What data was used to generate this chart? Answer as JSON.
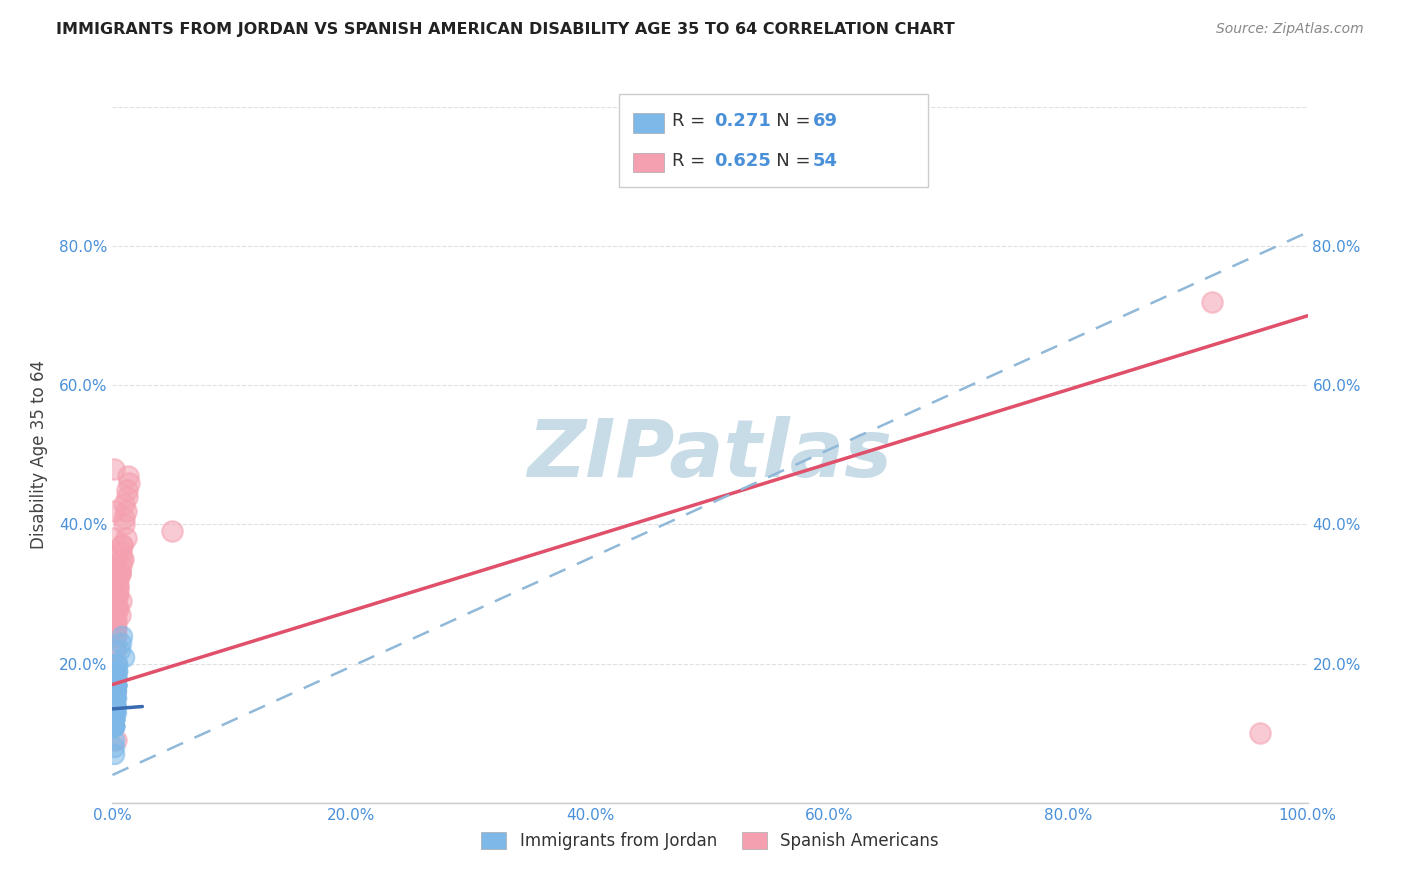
{
  "title": "IMMIGRANTS FROM JORDAN VS SPANISH AMERICAN DISABILITY AGE 35 TO 64 CORRELATION CHART",
  "source": "Source: ZipAtlas.com",
  "ylabel": "Disability Age 35 to 64",
  "xlim": [
    0.0,
    1.0
  ],
  "ylim": [
    0.0,
    1.0
  ],
  "xticks": [
    0.0,
    0.2,
    0.4,
    0.6,
    0.8,
    1.0
  ],
  "yticks": [
    0.0,
    0.2,
    0.4,
    0.6,
    0.8
  ],
  "xtick_labels": [
    "0.0%",
    "20.0%",
    "40.0%",
    "60.0%",
    "80.0%",
    "100.0%"
  ],
  "ytick_labels": [
    "",
    "20.0%",
    "40.0%",
    "60.0%",
    "80.0%"
  ],
  "tick_color": "#4a90d9",
  "blue_R": "0.271",
  "blue_N": "69",
  "pink_R": "0.625",
  "pink_N": "54",
  "blue_color": "#7db8e8",
  "pink_color": "#f4a0b0",
  "trendline_blue_color": "#3a6ab0",
  "trendline_pink_color": "#e0506a",
  "trendline_dashed_color": "#90b8d8",
  "watermark": "ZIPatlas",
  "watermark_color": "#c8dce8",
  "background_color": "#ffffff",
  "grid_color": "#e0e0e0",
  "legend_label_blue": "Immigrants from Jordan",
  "legend_label_pink": "Spanish Americans",
  "blue_scatter_x": [
    0.001,
    0.002,
    0.001,
    0.003,
    0.001,
    0.002,
    0.003,
    0.001,
    0.002,
    0.002,
    0.003,
    0.001,
    0.001,
    0.003,
    0.002,
    0.002,
    0.001,
    0.003,
    0.001,
    0.002,
    0.002,
    0.003,
    0.001,
    0.004,
    0.002,
    0.003,
    0.001,
    0.002,
    0.001,
    0.003,
    0.002,
    0.003,
    0.002,
    0.001,
    0.004,
    0.001,
    0.002,
    0.003,
    0.002,
    0.003,
    0.001,
    0.002,
    0.001,
    0.002,
    0.003,
    0.003,
    0.001,
    0.004,
    0.002,
    0.002,
    0.003,
    0.001,
    0.003,
    0.001,
    0.002,
    0.001,
    0.001,
    0.001,
    0.002,
    0.003,
    0.003,
    0.002,
    0.001,
    0.004,
    0.002,
    0.006,
    0.008,
    0.01,
    0.007
  ],
  "blue_scatter_y": [
    0.14,
    0.16,
    0.12,
    0.18,
    0.13,
    0.17,
    0.15,
    0.11,
    0.14,
    0.16,
    0.13,
    0.15,
    0.12,
    0.17,
    0.14,
    0.16,
    0.13,
    0.18,
    0.11,
    0.15,
    0.14,
    0.16,
    0.12,
    0.19,
    0.13,
    0.17,
    0.11,
    0.15,
    0.12,
    0.18,
    0.14,
    0.17,
    0.15,
    0.13,
    0.19,
    0.11,
    0.14,
    0.18,
    0.16,
    0.17,
    0.12,
    0.15,
    0.11,
    0.16,
    0.18,
    0.17,
    0.13,
    0.2,
    0.14,
    0.16,
    0.17,
    0.12,
    0.19,
    0.13,
    0.15,
    0.07,
    0.08,
    0.09,
    0.16,
    0.17,
    0.18,
    0.14,
    0.13,
    0.2,
    0.15,
    0.22,
    0.24,
    0.21,
    0.23
  ],
  "pink_scatter_x": [
    0.001,
    0.002,
    0.001,
    0.003,
    0.004,
    0.005,
    0.006,
    0.007,
    0.009,
    0.011,
    0.001,
    0.002,
    0.002,
    0.003,
    0.004,
    0.005,
    0.006,
    0.008,
    0.01,
    0.012,
    0.001,
    0.002,
    0.002,
    0.003,
    0.004,
    0.005,
    0.007,
    0.008,
    0.011,
    0.014,
    0.001,
    0.001,
    0.002,
    0.002,
    0.003,
    0.005,
    0.006,
    0.007,
    0.01,
    0.012,
    0.001,
    0.002,
    0.002,
    0.003,
    0.004,
    0.005,
    0.006,
    0.008,
    0.01,
    0.013,
    0.05,
    0.92,
    0.96,
    0.003
  ],
  "pink_scatter_y": [
    0.48,
    0.35,
    0.3,
    0.25,
    0.32,
    0.28,
    0.27,
    0.29,
    0.35,
    0.38,
    0.42,
    0.16,
    0.22,
    0.24,
    0.28,
    0.3,
    0.33,
    0.35,
    0.4,
    0.44,
    0.15,
    0.2,
    0.25,
    0.27,
    0.3,
    0.32,
    0.34,
    0.37,
    0.42,
    0.46,
    0.17,
    0.19,
    0.22,
    0.26,
    0.29,
    0.31,
    0.33,
    0.36,
    0.41,
    0.45,
    0.38,
    0.18,
    0.24,
    0.26,
    0.28,
    0.31,
    0.33,
    0.37,
    0.43,
    0.47,
    0.39,
    0.72,
    0.1,
    0.09
  ],
  "blue_trend_x0": 0.0,
  "blue_trend_x1": 1.0,
  "blue_trend_y0": 0.135,
  "blue_trend_y1": 0.27,
  "pink_trend_x0": 0.0,
  "pink_trend_x1": 1.0,
  "pink_trend_y0": 0.17,
  "pink_trend_y1": 0.7,
  "dash_trend_x0": 0.0,
  "dash_trend_x1": 1.0,
  "dash_trend_y0": 0.04,
  "dash_trend_y1": 0.82
}
